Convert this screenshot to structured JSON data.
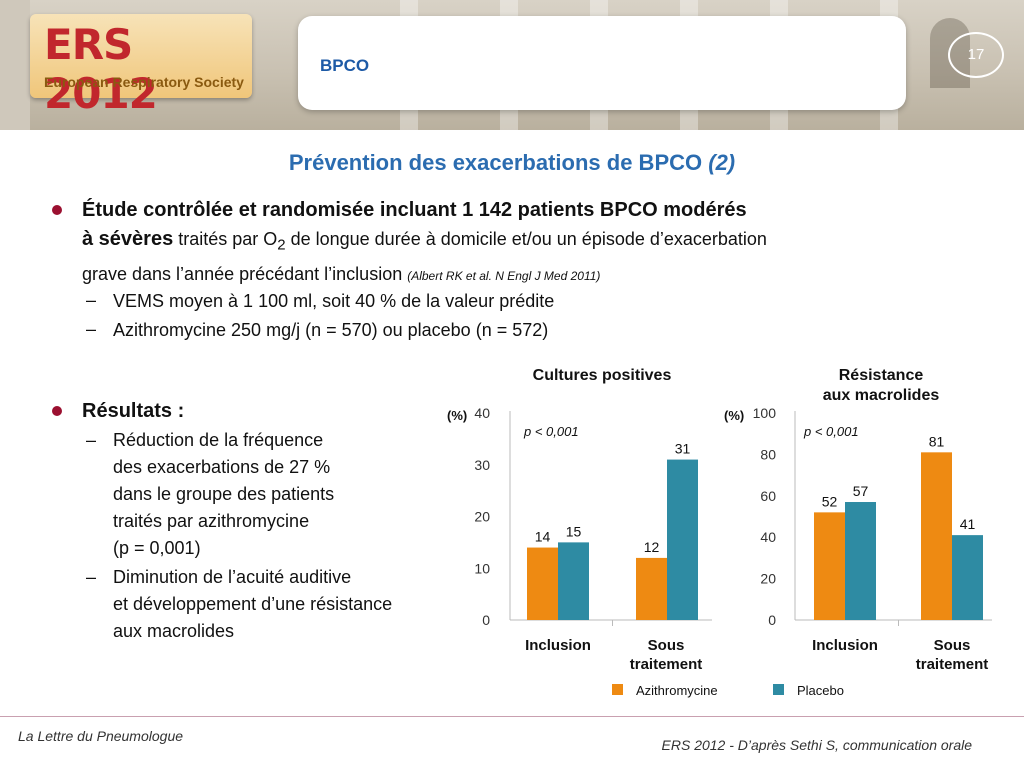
{
  "header": {
    "logo_title": "ERS 2012",
    "logo_subtitle": "European Respiratory Society",
    "section_label": "BPCO",
    "page_number": "17"
  },
  "slide": {
    "title": "Prévention des exacerbations de BPCO",
    "title_suffix": "(2)",
    "study": {
      "bold": "Étude contrôlée et randomisée incluant 1 142 patients BPCO modérés",
      "bold_line2": "à sévères",
      "text_a": " traités par O",
      "sub": "2",
      "text_b": " de longue durée à domicile et/ou un épisode d’exacerbation",
      "text_c": "grave dans l’année précédant l’inclusion ",
      "citation": "(Albert RK et al. N Engl J Med 2011)",
      "sub_items": [
        "VEMS moyen à 1 100 ml, soit 40 % de la valeur prédite",
        "Azithromycine 250 mg/j (n = 570) ou placebo (n = 572)"
      ]
    },
    "results": {
      "heading": "Résultats :",
      "item1_lines": [
        "Réduction de la fréquence",
        "des exacerbations de 27 %",
        "dans le groupe des patients",
        "traités par azithromycine",
        "(p = 0,001)"
      ],
      "item2_lines": [
        "Diminution de l’acuité auditive",
        "et développement d’une résistance",
        "aux macrolides"
      ]
    }
  },
  "chart_data": [
    {
      "type": "bar",
      "title": "Cultures positives",
      "ylabel": "(%)",
      "ylim": [
        0,
        40
      ],
      "yticks": [
        "0",
        "10",
        "20",
        "30",
        "40"
      ],
      "pvalue": "p < 0,001",
      "categories": [
        "Inclusion",
        "Sous traitement"
      ],
      "category_lines": [
        [
          "Inclusion"
        ],
        [
          "Sous",
          "traitement"
        ]
      ],
      "series": [
        {
          "name": "Azithromycine",
          "values": [
            14,
            12
          ]
        },
        {
          "name": "Placebo",
          "values": [
            15,
            31
          ]
        }
      ]
    },
    {
      "type": "bar",
      "title": "Résistance aux macrolides",
      "title_lines": [
        "Résistance",
        "aux macrolides"
      ],
      "ylabel": "(%)",
      "ylim": [
        0,
        100
      ],
      "yticks": [
        "0",
        "20",
        "40",
        "60",
        "80",
        "100"
      ],
      "pvalue": "p < 0,001",
      "categories": [
        "Inclusion",
        "Sous traitement"
      ],
      "category_lines": [
        [
          "Inclusion"
        ],
        [
          "Sous",
          "traitement"
        ]
      ],
      "series": [
        {
          "name": "Azithromycine",
          "values": [
            52,
            81
          ]
        },
        {
          "name": "Placebo",
          "values": [
            57,
            41
          ]
        }
      ]
    }
  ],
  "legend": {
    "items": [
      {
        "label": "Azithromycine",
        "color": "#ee8a12"
      },
      {
        "label": "Placebo",
        "color": "#2e8ba3"
      }
    ]
  },
  "footer": {
    "left": "La Lettre du Pneumologue",
    "right": "ERS 2012 - D’après Sethi S, communication orale"
  }
}
